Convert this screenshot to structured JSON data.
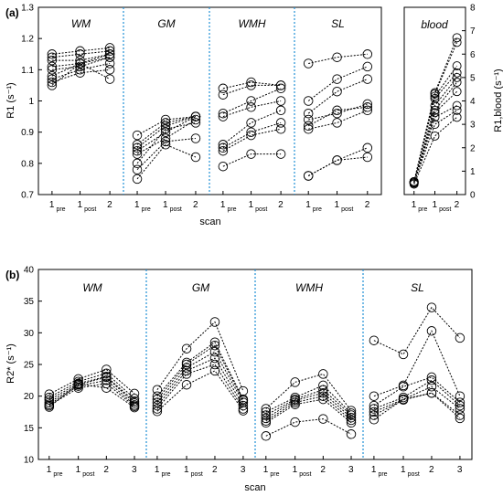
{
  "chart_data": [
    {
      "panel": "(a)",
      "type": "line",
      "ylabel": "R1 (s⁻¹)",
      "xlabel": "scan",
      "ylim": [
        0.7,
        1.3
      ],
      "yticks": [
        "0.7",
        "0.8",
        "0.9",
        "1",
        "1.1",
        "1.2",
        "1.3"
      ],
      "groups": [
        {
          "name": "WM",
          "x": [
            [
              "1",
              "pre"
            ],
            [
              "1",
              "post"
            ],
            [
              "2",
              ""
            ]
          ],
          "series": [
            [
              1.15,
              1.16,
              1.17
            ],
            [
              1.14,
              1.15,
              1.16
            ],
            [
              1.13,
              1.13,
              1.15
            ],
            [
              1.11,
              1.12,
              1.15
            ],
            [
              1.1,
              1.11,
              1.14
            ],
            [
              1.08,
              1.12,
              1.14
            ],
            [
              1.07,
              1.1,
              1.12
            ],
            [
              1.06,
              1.09,
              1.1
            ],
            [
              1.05,
              1.12,
              1.07
            ]
          ]
        },
        {
          "name": "GM",
          "x": [
            [
              "1",
              "pre"
            ],
            [
              "1",
              "post"
            ],
            [
              "2",
              ""
            ]
          ],
          "series": [
            [
              0.89,
              0.94,
              0.95
            ],
            [
              0.86,
              0.93,
              0.95
            ],
            [
              0.85,
              0.92,
              0.95
            ],
            [
              0.84,
              0.9,
              0.95
            ],
            [
              0.83,
              0.88,
              0.94
            ],
            [
              0.8,
              0.91,
              0.93
            ],
            [
              0.78,
              0.87,
              0.88
            ],
            [
              0.75,
              0.86,
              0.82
            ]
          ]
        },
        {
          "name": "WMH",
          "x": [
            [
              "1",
              "pre"
            ],
            [
              "1",
              "post"
            ],
            [
              "2",
              ""
            ]
          ],
          "series": [
            [
              1.04,
              1.06,
              1.05
            ],
            [
              1.02,
              1.05,
              1.05
            ],
            [
              0.96,
              1.0,
              1.04
            ],
            [
              0.95,
              0.98,
              1.0
            ],
            [
              0.86,
              0.93,
              0.97
            ],
            [
              0.85,
              0.9,
              0.93
            ],
            [
              0.84,
              0.89,
              0.91
            ],
            [
              0.79,
              0.83,
              0.83
            ]
          ]
        },
        {
          "name": "SL",
          "x": [
            [
              "1",
              "pre"
            ],
            [
              "1",
              "post"
            ],
            [
              "2",
              ""
            ]
          ],
          "series": [
            [
              1.12,
              1.14,
              1.15
            ],
            [
              1.0,
              1.07,
              1.11
            ],
            [
              0.96,
              1.03,
              1.07
            ],
            [
              0.94,
              0.96,
              0.99
            ],
            [
              0.92,
              0.97,
              0.98
            ],
            [
              0.91,
              0.93,
              0.97
            ],
            [
              0.76,
              0.81,
              0.85
            ],
            [
              0.76,
              0.81,
              0.82
            ]
          ]
        }
      ]
    },
    {
      "panel": "blood",
      "type": "line",
      "ylabel": "R1,blood (s⁻¹)",
      "ylim": [
        0,
        8
      ],
      "yticks": [
        "0",
        "1",
        "2",
        "3",
        "4",
        "5",
        "6",
        "7",
        "8"
      ],
      "groups": [
        {
          "name": "blood",
          "x": [
            [
              "1",
              "pre"
            ],
            [
              "1",
              "post"
            ],
            [
              "2",
              ""
            ]
          ],
          "series": [
            [
              0.55,
              4.35,
              6.7
            ],
            [
              0.55,
              4.3,
              6.5
            ],
            [
              0.55,
              4.2,
              5.5
            ],
            [
              0.55,
              4.1,
              5.2
            ],
            [
              0.5,
              3.8,
              5.0
            ],
            [
              0.5,
              3.6,
              4.8
            ],
            [
              0.5,
              3.5,
              4.4
            ],
            [
              0.5,
              3.3,
              3.8
            ],
            [
              0.5,
              3.0,
              3.6
            ],
            [
              0.45,
              2.5,
              3.3
            ]
          ]
        }
      ]
    },
    {
      "panel": "(b)",
      "type": "line",
      "ylabel": "R2* (s⁻¹)",
      "xlabel": "scan",
      "ylim": [
        10,
        40
      ],
      "yticks": [
        "10",
        "15",
        "20",
        "25",
        "30",
        "35",
        "40"
      ],
      "groups": [
        {
          "name": "WM",
          "x": [
            [
              "1",
              "pre"
            ],
            [
              "1",
              "post"
            ],
            [
              "2",
              ""
            ],
            [
              "3",
              ""
            ]
          ],
          "series": [
            [
              20.3,
              22.7,
              24.2,
              20.4
            ],
            [
              19.8,
              22.3,
              23.6,
              19.6
            ],
            [
              19.4,
              22.0,
              23.1,
              19.2
            ],
            [
              19.0,
              21.8,
              23.0,
              18.9
            ],
            [
              18.7,
              21.6,
              22.5,
              18.6
            ],
            [
              18.5,
              21.3,
              22.0,
              18.4
            ],
            [
              18.3,
              21.9,
              21.3,
              18.2
            ]
          ]
        },
        {
          "name": "GM",
          "x": [
            [
              "1",
              "pre"
            ],
            [
              "1",
              "post"
            ],
            [
              "2",
              ""
            ],
            [
              "3",
              ""
            ]
          ],
          "series": [
            [
              21.0,
              27.5,
              31.7,
              20.8
            ],
            [
              20.0,
              25.3,
              28.5,
              19.5
            ],
            [
              19.5,
              25.0,
              28.0,
              19.3
            ],
            [
              19.0,
              24.5,
              27.0,
              19.0
            ],
            [
              18.5,
              24.0,
              26.0,
              18.5
            ],
            [
              18.0,
              23.5,
              25.0,
              18.0
            ],
            [
              17.6,
              21.8,
              24.0,
              17.7
            ]
          ]
        },
        {
          "name": "WMH",
          "x": [
            [
              "1",
              "pre"
            ],
            [
              "1",
              "post"
            ],
            [
              "2",
              ""
            ],
            [
              "3",
              ""
            ]
          ],
          "series": [
            [
              18.0,
              22.2,
              23.5,
              17.7
            ],
            [
              17.5,
              19.8,
              21.7,
              17.3
            ],
            [
              17.0,
              19.5,
              21.0,
              17.0
            ],
            [
              16.5,
              19.3,
              20.5,
              16.6
            ],
            [
              16.1,
              19.0,
              20.0,
              16.2
            ],
            [
              15.8,
              18.7,
              19.5,
              15.8
            ],
            [
              13.7,
              15.9,
              16.4,
              14.0
            ]
          ]
        },
        {
          "name": "SL",
          "x": [
            [
              "1",
              "pre"
            ],
            [
              "1",
              "post"
            ],
            [
              "2",
              ""
            ],
            [
              "3",
              ""
            ]
          ],
          "series": [
            [
              28.8,
              26.6,
              34.0,
              29.2
            ],
            [
              20.0,
              21.7,
              30.3,
              20.0
            ],
            [
              18.5,
              21.5,
              23.0,
              19.0
            ],
            [
              18.0,
              19.8,
              22.5,
              18.5
            ],
            [
              17.5,
              19.5,
              21.5,
              18.0
            ],
            [
              17.0,
              19.4,
              20.5,
              17.0
            ],
            [
              16.3,
              19.5,
              20.5,
              16.5
            ]
          ]
        }
      ]
    }
  ]
}
